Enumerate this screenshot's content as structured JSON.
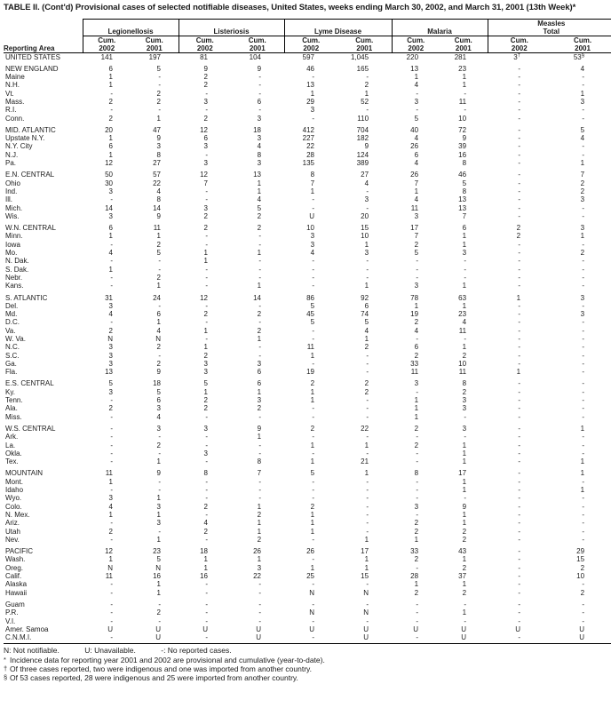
{
  "title": "TABLE II. (Cont'd) Provisional cases of selected notifiable diseases, United States, weeks ending March 30, 2002, and March 31, 2001 (13th Week)*",
  "header": {
    "reporting_area": "Reporting Area",
    "cum_label": "Cum.",
    "year_2002": "2002",
    "year_2001": "2001",
    "groups": [
      {
        "line1": "Legionellosis",
        "line2": ""
      },
      {
        "line1": "Listeriosis",
        "line2": ""
      },
      {
        "line1": "Lyme Disease",
        "line2": ""
      },
      {
        "line1": "Malaria",
        "line2": ""
      },
      {
        "line1": "Measles",
        "line2": "Total"
      }
    ]
  },
  "sections": [
    {
      "rows": [
        {
          "area": "UNITED STATES",
          "values": [
            "141",
            "197",
            "81",
            "104",
            "597",
            "1,045",
            "220",
            "281",
            "3†",
            "53§"
          ]
        }
      ]
    },
    {
      "rows": [
        {
          "area": "NEW ENGLAND",
          "values": [
            "6",
            "5",
            "9",
            "9",
            "46",
            "165",
            "13",
            "23",
            "-",
            "4"
          ]
        },
        {
          "area": "Maine",
          "values": [
            "1",
            "-",
            "2",
            "-",
            "-",
            "-",
            "1",
            "1",
            "-",
            "-"
          ]
        },
        {
          "area": "N.H.",
          "values": [
            "1",
            "-",
            "2",
            "-",
            "13",
            "2",
            "4",
            "1",
            "-",
            "-"
          ]
        },
        {
          "area": "Vt.",
          "values": [
            "-",
            "2",
            "-",
            "-",
            "1",
            "1",
            "-",
            "-",
            "-",
            "1"
          ]
        },
        {
          "area": "Mass.",
          "values": [
            "2",
            "2",
            "3",
            "6",
            "29",
            "52",
            "3",
            "11",
            "-",
            "3"
          ]
        },
        {
          "area": "R.I.",
          "values": [
            "-",
            "-",
            "-",
            "-",
            "3",
            "-",
            "-",
            "-",
            "-",
            "-"
          ]
        },
        {
          "area": "Conn.",
          "values": [
            "2",
            "1",
            "2",
            "3",
            "-",
            "110",
            "5",
            "10",
            "-",
            "-"
          ]
        }
      ]
    },
    {
      "rows": [
        {
          "area": "MID. ATLANTIC",
          "values": [
            "20",
            "47",
            "12",
            "18",
            "412",
            "704",
            "40",
            "72",
            "-",
            "5"
          ]
        },
        {
          "area": "Upstate N.Y.",
          "values": [
            "1",
            "9",
            "6",
            "3",
            "227",
            "182",
            "4",
            "9",
            "-",
            "4"
          ]
        },
        {
          "area": "N.Y. City",
          "values": [
            "6",
            "3",
            "3",
            "4",
            "22",
            "9",
            "26",
            "39",
            "-",
            "-"
          ]
        },
        {
          "area": "N.J.",
          "values": [
            "1",
            "8",
            "-",
            "8",
            "28",
            "124",
            "6",
            "16",
            "-",
            "-"
          ]
        },
        {
          "area": "Pa.",
          "values": [
            "12",
            "27",
            "3",
            "3",
            "135",
            "389",
            "4",
            "8",
            "-",
            "1"
          ]
        }
      ]
    },
    {
      "rows": [
        {
          "area": "E.N. CENTRAL",
          "values": [
            "50",
            "57",
            "12",
            "13",
            "8",
            "27",
            "26",
            "46",
            "-",
            "7"
          ]
        },
        {
          "area": "Ohio",
          "values": [
            "30",
            "22",
            "7",
            "1",
            "7",
            "4",
            "7",
            "5",
            "-",
            "2"
          ]
        },
        {
          "area": "Ind.",
          "values": [
            "3",
            "4",
            "-",
            "1",
            "1",
            "-",
            "1",
            "8",
            "-",
            "2"
          ]
        },
        {
          "area": "Ill.",
          "values": [
            "-",
            "8",
            "-",
            "4",
            "-",
            "3",
            "4",
            "13",
            "-",
            "3"
          ]
        },
        {
          "area": "Mich.",
          "values": [
            "14",
            "14",
            "3",
            "5",
            "-",
            "-",
            "11",
            "13",
            "-",
            "-"
          ]
        },
        {
          "area": "Wis.",
          "values": [
            "3",
            "9",
            "2",
            "2",
            "U",
            "20",
            "3",
            "7",
            "-",
            "-"
          ]
        }
      ]
    },
    {
      "rows": [
        {
          "area": "W.N. CENTRAL",
          "values": [
            "6",
            "11",
            "2",
            "2",
            "10",
            "15",
            "17",
            "6",
            "2",
            "3"
          ]
        },
        {
          "area": "Minn.",
          "values": [
            "1",
            "1",
            "-",
            "-",
            "3",
            "10",
            "7",
            "1",
            "2",
            "1"
          ]
        },
        {
          "area": "Iowa",
          "values": [
            "-",
            "2",
            "-",
            "-",
            "3",
            "1",
            "2",
            "1",
            "-",
            "-"
          ]
        },
        {
          "area": "Mo.",
          "values": [
            "4",
            "5",
            "1",
            "1",
            "4",
            "3",
            "5",
            "3",
            "-",
            "2"
          ]
        },
        {
          "area": "N. Dak.",
          "values": [
            "-",
            "-",
            "1",
            "-",
            "-",
            "-",
            "-",
            "-",
            "-",
            "-"
          ]
        },
        {
          "area": "S. Dak.",
          "values": [
            "1",
            "-",
            "-",
            "-",
            "-",
            "-",
            "-",
            "-",
            "-",
            "-"
          ]
        },
        {
          "area": "Nebr.",
          "values": [
            "-",
            "2",
            "-",
            "-",
            "-",
            "-",
            "-",
            "-",
            "-",
            "-"
          ]
        },
        {
          "area": "Kans.",
          "values": [
            "-",
            "1",
            "-",
            "1",
            "-",
            "1",
            "3",
            "1",
            "-",
            "-"
          ]
        }
      ]
    },
    {
      "rows": [
        {
          "area": "S. ATLANTIC",
          "values": [
            "31",
            "24",
            "12",
            "14",
            "86",
            "92",
            "78",
            "63",
            "1",
            "3"
          ]
        },
        {
          "area": "Del.",
          "values": [
            "3",
            "-",
            "-",
            "-",
            "5",
            "6",
            "1",
            "1",
            "-",
            "-"
          ]
        },
        {
          "area": "Md.",
          "values": [
            "4",
            "6",
            "2",
            "2",
            "45",
            "74",
            "19",
            "23",
            "-",
            "3"
          ]
        },
        {
          "area": "D.C.",
          "values": [
            "-",
            "1",
            "-",
            "-",
            "5",
            "5",
            "2",
            "4",
            "-",
            "-"
          ]
        },
        {
          "area": "Va.",
          "values": [
            "2",
            "4",
            "1",
            "2",
            "-",
            "4",
            "4",
            "11",
            "-",
            "-"
          ]
        },
        {
          "area": "W. Va.",
          "values": [
            "N",
            "N",
            "-",
            "1",
            "-",
            "1",
            "-",
            "-",
            "-",
            "-"
          ]
        },
        {
          "area": "N.C.",
          "values": [
            "3",
            "2",
            "1",
            "-",
            "11",
            "2",
            "6",
            "1",
            "-",
            "-"
          ]
        },
        {
          "area": "S.C.",
          "values": [
            "3",
            "-",
            "2",
            "-",
            "1",
            "-",
            "2",
            "2",
            "-",
            "-"
          ]
        },
        {
          "area": "Ga.",
          "values": [
            "3",
            "2",
            "3",
            "3",
            "-",
            "-",
            "33",
            "10",
            "-",
            "-"
          ]
        },
        {
          "area": "Fla.",
          "values": [
            "13",
            "9",
            "3",
            "6",
            "19",
            "-",
            "11",
            "11",
            "1",
            "-"
          ]
        }
      ]
    },
    {
      "rows": [
        {
          "area": "E.S. CENTRAL",
          "values": [
            "5",
            "18",
            "5",
            "6",
            "2",
            "2",
            "3",
            "8",
            "-",
            "-"
          ]
        },
        {
          "area": "Ky.",
          "values": [
            "3",
            "5",
            "1",
            "1",
            "1",
            "2",
            "-",
            "2",
            "-",
            "-"
          ]
        },
        {
          "area": "Tenn.",
          "values": [
            "-",
            "6",
            "2",
            "3",
            "1",
            "-",
            "1",
            "3",
            "-",
            "-"
          ]
        },
        {
          "area": "Ala.",
          "values": [
            "2",
            "3",
            "2",
            "2",
            "-",
            "-",
            "1",
            "3",
            "-",
            "-"
          ]
        },
        {
          "area": "Miss.",
          "values": [
            "-",
            "4",
            "-",
            "-",
            "-",
            "-",
            "1",
            "-",
            "-",
            "-"
          ]
        }
      ]
    },
    {
      "rows": [
        {
          "area": "W.S. CENTRAL",
          "values": [
            "-",
            "3",
            "3",
            "9",
            "2",
            "22",
            "2",
            "3",
            "-",
            "1"
          ]
        },
        {
          "area": "Ark.",
          "values": [
            "-",
            "-",
            "-",
            "1",
            "-",
            "-",
            "-",
            "-",
            "-",
            "-"
          ]
        },
        {
          "area": "La.",
          "values": [
            "-",
            "2",
            "-",
            "-",
            "1",
            "1",
            "2",
            "1",
            "-",
            "-"
          ]
        },
        {
          "area": "Okla.",
          "values": [
            "-",
            "-",
            "3",
            "-",
            "-",
            "-",
            "-",
            "1",
            "-",
            "-"
          ]
        },
        {
          "area": "Tex.",
          "values": [
            "-",
            "1",
            "-",
            "8",
            "1",
            "21",
            "-",
            "1",
            "-",
            "1"
          ]
        }
      ]
    },
    {
      "rows": [
        {
          "area": "MOUNTAIN",
          "values": [
            "11",
            "9",
            "8",
            "7",
            "5",
            "1",
            "8",
            "17",
            "-",
            "1"
          ]
        },
        {
          "area": "Mont.",
          "values": [
            "1",
            "-",
            "-",
            "-",
            "-",
            "-",
            "-",
            "1",
            "-",
            "-"
          ]
        },
        {
          "area": "Idaho",
          "values": [
            "-",
            "-",
            "-",
            "-",
            "-",
            "-",
            "-",
            "1",
            "-",
            "1"
          ]
        },
        {
          "area": "Wyo.",
          "values": [
            "3",
            "1",
            "-",
            "-",
            "-",
            "-",
            "-",
            "-",
            "-",
            "-"
          ]
        },
        {
          "area": "Colo.",
          "values": [
            "4",
            "3",
            "2",
            "1",
            "2",
            "-",
            "3",
            "9",
            "-",
            "-"
          ]
        },
        {
          "area": "N. Mex.",
          "values": [
            "1",
            "1",
            "-",
            "2",
            "1",
            "-",
            "-",
            "1",
            "-",
            "-"
          ]
        },
        {
          "area": "Ariz.",
          "values": [
            "-",
            "3",
            "4",
            "1",
            "1",
            "-",
            "2",
            "1",
            "-",
            "-"
          ]
        },
        {
          "area": "Utah",
          "values": [
            "2",
            "-",
            "2",
            "1",
            "1",
            "-",
            "2",
            "2",
            "-",
            "-"
          ]
        },
        {
          "area": "Nev.",
          "values": [
            "-",
            "1",
            "-",
            "2",
            "-",
            "1",
            "1",
            "2",
            "-",
            "-"
          ]
        }
      ]
    },
    {
      "rows": [
        {
          "area": "PACIFIC",
          "values": [
            "12",
            "23",
            "18",
            "26",
            "26",
            "17",
            "33",
            "43",
            "-",
            "29"
          ]
        },
        {
          "area": "Wash.",
          "values": [
            "1",
            "5",
            "1",
            "1",
            "-",
            "1",
            "2",
            "1",
            "-",
            "15"
          ]
        },
        {
          "area": "Oreg.",
          "values": [
            "N",
            "N",
            "1",
            "3",
            "1",
            "1",
            "-",
            "2",
            "-",
            "2"
          ]
        },
        {
          "area": "Calif.",
          "values": [
            "11",
            "16",
            "16",
            "22",
            "25",
            "15",
            "28",
            "37",
            "-",
            "10"
          ]
        },
        {
          "area": "Alaska",
          "values": [
            "-",
            "1",
            "-",
            "-",
            "-",
            "-",
            "1",
            "1",
            "-",
            "-"
          ]
        },
        {
          "area": "Hawaii",
          "values": [
            "-",
            "1",
            "-",
            "-",
            "N",
            "N",
            "2",
            "2",
            "-",
            "2"
          ]
        }
      ]
    },
    {
      "rows": [
        {
          "area": "Guam",
          "values": [
            "-",
            "-",
            "-",
            "-",
            "-",
            "-",
            "-",
            "-",
            "-",
            "-"
          ]
        },
        {
          "area": "P.R.",
          "values": [
            "-",
            "2",
            "-",
            "-",
            "N",
            "N",
            "-",
            "1",
            "-",
            "-"
          ]
        },
        {
          "area": "V.I.",
          "values": [
            "-",
            "-",
            "-",
            "-",
            "-",
            "-",
            "-",
            "-",
            "-",
            "-"
          ]
        },
        {
          "area": "Amer. Samoa",
          "values": [
            "U",
            "U",
            "U",
            "U",
            "U",
            "U",
            "U",
            "U",
            "U",
            "U"
          ]
        },
        {
          "area": "C.N.M.I.",
          "values": [
            "-",
            "U",
            "-",
            "U",
            "-",
            "U",
            "-",
            "U",
            "-",
            "U"
          ]
        }
      ]
    }
  ],
  "footnotes": {
    "legend": [
      "N: Not notifiable.",
      "U: Unavailable.",
      "-: No reported cases."
    ],
    "lines": [
      {
        "sym": "*",
        "text": "Incidence data for reporting year 2001 and 2002 are provisional and cumulative (year-to-date)."
      },
      {
        "sym": "†",
        "text": "Of three cases reported, two were indigenous and one was imported from another country."
      },
      {
        "sym": "§",
        "text": "Of 53 cases reported, 28 were indigenous and 25 were imported from another country."
      }
    ]
  }
}
